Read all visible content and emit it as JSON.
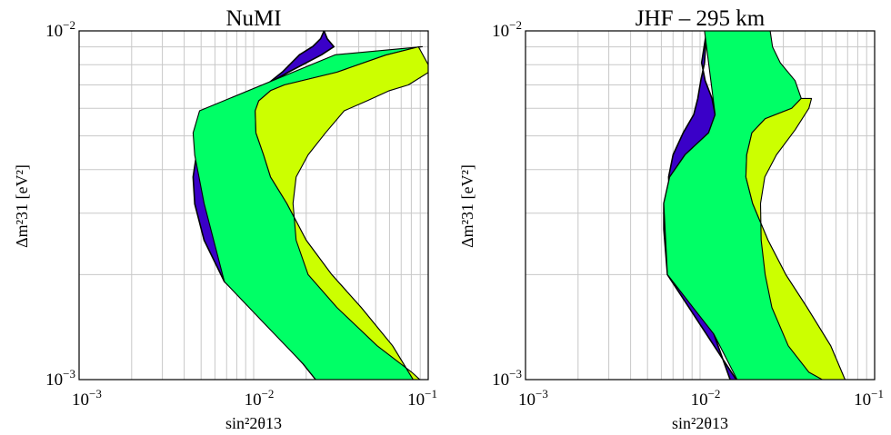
{
  "figure": {
    "panels": [
      {
        "title": "NuMI",
        "xlabel": "sin²2θ13",
        "ylabel": "Δm²31 [eV²]"
      },
      {
        "title": "JHF – 295 km",
        "xlabel": "sin²2θ13",
        "ylabel": "Δm²31 [eV²]"
      }
    ]
  },
  "chart_data": [
    {
      "type": "area",
      "title": "NuMI",
      "xlabel": "sin²2θ13",
      "ylabel": "Δm²31 [eV²]",
      "xscale": "log",
      "yscale": "log",
      "xlim": [
        0.001,
        0.1
      ],
      "ylim": [
        0.001,
        0.01
      ],
      "grid": true,
      "xticklabels": [
        "10⁻³",
        "10⁻²",
        "10⁻¹"
      ],
      "yticklabels": [
        "10⁻³",
        "10⁻²"
      ],
      "colors": {
        "inner": "#3a00c8",
        "middle": "#00ff66",
        "outer": "#ccff00",
        "edge": "#000000"
      },
      "series": [
        {
          "x": [
            0.0296,
            0.0068,
            0.0052,
            0.0046,
            0.0045,
            0.0047,
            0.0054,
            0.0069,
            0.0103,
            0.0158,
            0.0245,
            0.0288,
            0.0264,
            0.0253,
            0.0242,
            0.0218,
            0.0183,
            0.0146,
            0.0108,
            0.0088,
            0.0074,
            0.0065,
            0.0063,
            0.0065,
            0.0071,
            0.0089,
            0.0121,
            0.0192,
            0.0242
          ],
          "y": [
            0.00096,
            0.00191,
            0.00251,
            0.00319,
            0.00381,
            0.0044,
            0.0051,
            0.00589,
            0.00674,
            0.00761,
            0.00854,
            0.00901,
            0.0095,
            0.01,
            0.0095,
            0.00902,
            0.00854,
            0.00762,
            0.00675,
            0.0059,
            0.0051,
            0.0044,
            0.00381,
            0.0032,
            0.00252,
            0.00192,
            0.00143,
            0.00111,
            0.00096
          ]
        },
        {
          "x": [
            0.0862,
            0.0625,
            0.0413,
            0.028,
            0.02,
            0.0155,
            0.0125,
            0.0114,
            0.0103,
            0.0102,
            0.0107,
            0.0125,
            0.015,
            0.03,
            0.057,
            0.088,
            0.0925,
            0.0294,
            0.0049,
            0.0045,
            0.0046,
            0.0052,
            0.0068,
            0.0118,
            0.0192,
            0.0242
          ],
          "y": [
            0.00096,
            0.00125,
            0.00161,
            0.002,
            0.00251,
            0.0032,
            0.00381,
            0.00441,
            0.0051,
            0.0059,
            0.0063,
            0.00674,
            0.007,
            0.00761,
            0.00852,
            0.009,
            0.00901,
            0.00854,
            0.0059,
            0.0051,
            0.0044,
            0.0032,
            0.00191,
            0.00143,
            0.00111,
            0.00096
          ]
        },
        {
          "x": [
            0.098,
            0.0862,
            0.0625,
            0.0413,
            0.028,
            0.02,
            0.0155,
            0.0125,
            0.0114,
            0.0103,
            0.0102,
            0.0107,
            0.0125,
            0.015,
            0.03,
            0.057,
            0.088,
            0.1,
            0.1,
            0.077,
            0.06,
            0.0445,
            0.033,
            0.0258,
            0.0205,
            0.0175,
            0.0168,
            0.0175,
            0.0205,
            0.03,
            0.051,
            0.0805,
            0.098
          ],
          "y": [
            0.00096,
            0.00096,
            0.00125,
            0.00161,
            0.002,
            0.00251,
            0.0032,
            0.00381,
            0.00441,
            0.0051,
            0.0059,
            0.0063,
            0.00674,
            0.007,
            0.00761,
            0.00852,
            0.009,
            0.008,
            0.0076,
            0.007,
            0.00674,
            0.0063,
            0.0059,
            0.0051,
            0.00441,
            0.00381,
            0.0032,
            0.00251,
            0.002,
            0.00161,
            0.00125,
            0.00105,
            0.00096
          ]
        }
      ]
    },
    {
      "type": "area",
      "title": "JHF – 295 km",
      "xlabel": "sin²2θ13",
      "ylabel": "Δm²31 [eV²]",
      "xscale": "log",
      "yscale": "log",
      "xlim": [
        0.001,
        0.1
      ],
      "ylim": [
        0.001,
        0.01
      ],
      "grid": true,
      "xticklabels": [
        "10⁻³",
        "10⁻²",
        "10⁻¹"
      ],
      "yticklabels": [
        "10⁻³",
        "10⁻²"
      ],
      "colors": {
        "inner": "#3a00c8",
        "middle": "#00ff66",
        "outer": "#ccff00",
        "edge": "#000000"
      },
      "series": [
        {
          "x": [
            0.017,
            0.0065,
            0.0062,
            0.0062,
            0.0067,
            0.0082,
            0.0112,
            0.0122,
            0.0117,
            0.0107,
            0.0102,
            0.0109,
            0.0106,
            0.0101,
            0.0097,
            0.0092,
            0.008,
            0.007,
            0.0066,
            0.0067,
            0.0075,
            0.009,
            0.012,
            0.0153
          ],
          "y": [
            0.00096,
            0.002,
            0.0027,
            0.0032,
            0.00381,
            0.00441,
            0.0051,
            0.00575,
            0.0064,
            0.0072,
            0.0081,
            0.01,
            0.0081,
            0.0072,
            0.0064,
            0.00575,
            0.0051,
            0.00441,
            0.00381,
            0.0032,
            0.0027,
            0.002,
            0.00135,
            0.00096
          ]
        },
        {
          "x": [
            0.07,
            0.056,
            0.041,
            0.031,
            0.0245,
            0.02,
            0.0183,
            0.0185,
            0.0198,
            0.0236,
            0.0335,
            0.038,
            0.035,
            0.0288,
            0.026,
            0.0252,
            0.0106,
            0.0122,
            0.0112,
            0.0082,
            0.0067,
            0.0062,
            0.0065,
            0.012,
            0.017
          ],
          "y": [
            0.00096,
            0.00125,
            0.00161,
            0.002,
            0.00251,
            0.0032,
            0.00381,
            0.00441,
            0.0051,
            0.0056,
            0.006,
            0.0064,
            0.0072,
            0.0081,
            0.009,
            0.01,
            0.01,
            0.00575,
            0.0051,
            0.00441,
            0.00381,
            0.0032,
            0.002,
            0.00135,
            0.00096
          ]
        },
        {
          "x": [
            0.07,
            0.056,
            0.041,
            0.031,
            0.0245,
            0.02,
            0.0183,
            0.0185,
            0.0198,
            0.0236,
            0.0335,
            0.038,
            0.0435,
            0.042,
            0.035,
            0.0274,
            0.0235,
            0.0222,
            0.0224,
            0.0236,
            0.0258,
            0.032,
            0.042,
            0.056,
            0.067
          ],
          "y": [
            0.00096,
            0.00125,
            0.00161,
            0.002,
            0.00251,
            0.0032,
            0.00381,
            0.00441,
            0.0051,
            0.0056,
            0.006,
            0.0064,
            0.0064,
            0.006,
            0.0052,
            0.00441,
            0.00381,
            0.0032,
            0.00251,
            0.002,
            0.00161,
            0.00125,
            0.00105,
            0.00097,
            0.00096
          ]
        }
      ]
    }
  ]
}
